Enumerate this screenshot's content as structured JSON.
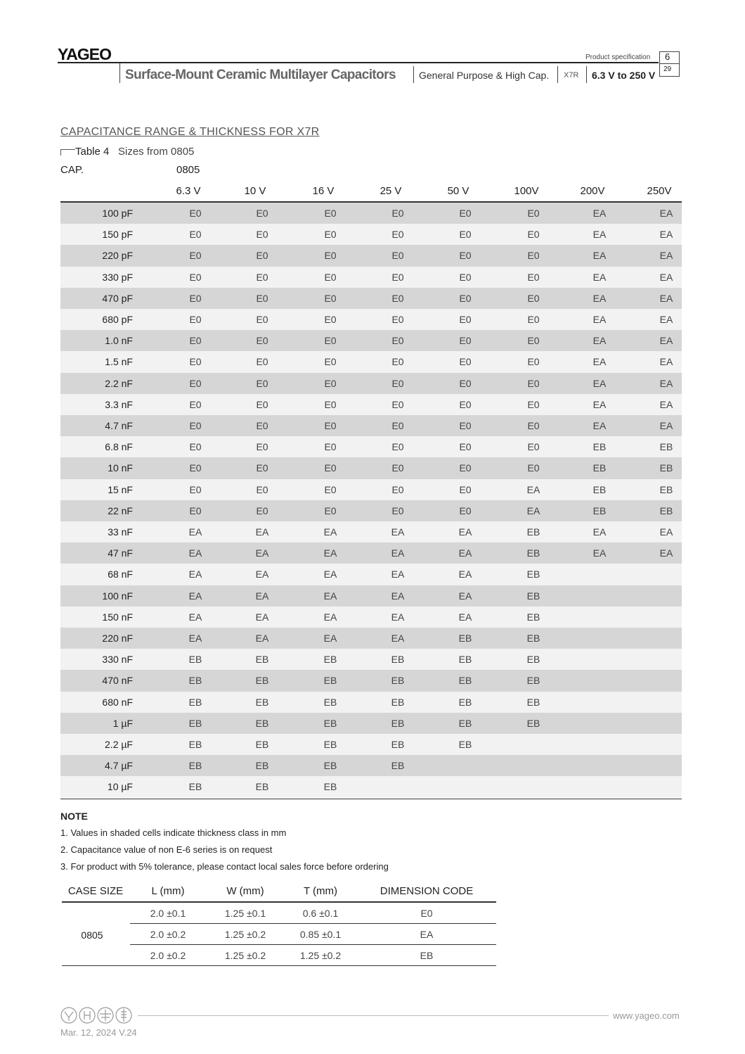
{
  "header": {
    "logo": "YAGEO",
    "product_spec": "Product specification",
    "page": "6",
    "total_pages": "29",
    "title": "Surface-Mount Ceramic Multilayer Capacitors",
    "subtitle": "General Purpose & High Cap.",
    "dielectric": "X7R",
    "voltage_range": "6.3 V to 250 V"
  },
  "section_title": "CAPACITANCE RANGE & THICKNESS FOR X7R",
  "table": {
    "label": "Table 4",
    "caption": "Sizes from 0805",
    "cap_header": "CAP.",
    "size": "0805",
    "voltages": [
      "6.3 V",
      "10 V",
      "16 V",
      "25 V",
      "50 V",
      "100V",
      "200V",
      "250V"
    ],
    "rows": [
      [
        "100 pF",
        "E0",
        "E0",
        "E0",
        "E0",
        "E0",
        "E0",
        "EA",
        "EA"
      ],
      [
        "150 pF",
        "E0",
        "E0",
        "E0",
        "E0",
        "E0",
        "E0",
        "EA",
        "EA"
      ],
      [
        "220 pF",
        "E0",
        "E0",
        "E0",
        "E0",
        "E0",
        "E0",
        "EA",
        "EA"
      ],
      [
        "330 pF",
        "E0",
        "E0",
        "E0",
        "E0",
        "E0",
        "E0",
        "EA",
        "EA"
      ],
      [
        "470 pF",
        "E0",
        "E0",
        "E0",
        "E0",
        "E0",
        "E0",
        "EA",
        "EA"
      ],
      [
        "680 pF",
        "E0",
        "E0",
        "E0",
        "E0",
        "E0",
        "E0",
        "EA",
        "EA"
      ],
      [
        "1.0 nF",
        "E0",
        "E0",
        "E0",
        "E0",
        "E0",
        "E0",
        "EA",
        "EA"
      ],
      [
        "1.5 nF",
        "E0",
        "E0",
        "E0",
        "E0",
        "E0",
        "E0",
        "EA",
        "EA"
      ],
      [
        "2.2 nF",
        "E0",
        "E0",
        "E0",
        "E0",
        "E0",
        "E0",
        "EA",
        "EA"
      ],
      [
        "3.3 nF",
        "E0",
        "E0",
        "E0",
        "E0",
        "E0",
        "E0",
        "EA",
        "EA"
      ],
      [
        "4.7 nF",
        "E0",
        "E0",
        "E0",
        "E0",
        "E0",
        "E0",
        "EA",
        "EA"
      ],
      [
        "6.8 nF",
        "E0",
        "E0",
        "E0",
        "E0",
        "E0",
        "E0",
        "EB",
        "EB"
      ],
      [
        "10 nF",
        "E0",
        "E0",
        "E0",
        "E0",
        "E0",
        "E0",
        "EB",
        "EB"
      ],
      [
        "15 nF",
        "E0",
        "E0",
        "E0",
        "E0",
        "E0",
        "EA",
        "EB",
        "EB"
      ],
      [
        "22 nF",
        "E0",
        "E0",
        "E0",
        "E0",
        "E0",
        "EA",
        "EB",
        "EB"
      ],
      [
        "33 nF",
        "EA",
        "EA",
        "EA",
        "EA",
        "EA",
        "EB",
        "EA",
        "EA"
      ],
      [
        "47 nF",
        "EA",
        "EA",
        "EA",
        "EA",
        "EA",
        "EB",
        "EA",
        "EA"
      ],
      [
        "68 nF",
        "EA",
        "EA",
        "EA",
        "EA",
        "EA",
        "EB",
        null,
        null
      ],
      [
        "100 nF",
        "EA",
        "EA",
        "EA",
        "EA",
        "EA",
        "EB",
        null,
        null
      ],
      [
        "150 nF",
        "EA",
        "EA",
        "EA",
        "EA",
        "EA",
        "EB",
        null,
        null
      ],
      [
        "220 nF",
        "EA",
        "EA",
        "EA",
        "EA",
        "EB",
        "EB",
        null,
        null
      ],
      [
        "330 nF",
        "EB",
        "EB",
        "EB",
        "EB",
        "EB",
        "EB",
        null,
        null
      ],
      [
        "470 nF",
        "EB",
        "EB",
        "EB",
        "EB",
        "EB",
        "EB",
        null,
        null
      ],
      [
        "680 nF",
        "EB",
        "EB",
        "EB",
        "EB",
        "EB",
        "EB",
        null,
        null
      ],
      [
        "1 µF",
        "EB",
        "EB",
        "EB",
        "EB",
        "EB",
        "EB",
        null,
        null
      ],
      [
        "2.2 µF",
        "EB",
        "EB",
        "EB",
        "EB",
        "EB",
        null,
        null,
        null
      ],
      [
        "4.7 µF",
        "EB",
        "EB",
        "EB",
        "EB",
        null,
        null,
        null,
        null
      ],
      [
        "10 µF",
        "EB",
        "EB",
        "EB",
        null,
        null,
        null,
        null,
        null
      ]
    ]
  },
  "notes": {
    "title": "NOTE",
    "items": [
      "1. Values in shaded cells indicate thickness class in mm",
      "2. Capacitance value of non E-6 series is on request",
      "3. For product with 5% tolerance, please contact local sales force before ordering"
    ]
  },
  "dimensions": {
    "headers": [
      "CASE SIZE",
      "L (mm)",
      "W (mm)",
      "T (mm)",
      "DIMENSION CODE"
    ],
    "case_size": "0805",
    "rows": [
      [
        "2.0 ±0.1",
        "1.25 ±0.1",
        "0.6 ±0.1",
        "E0"
      ],
      [
        "2.0 ±0.2",
        "1.25 ±0.2",
        "0.85 ±0.1",
        "EA"
      ],
      [
        "2.0 ±0.2",
        "1.25 ±0.2",
        "1.25 ±0.2",
        "EB"
      ]
    ]
  },
  "footer": {
    "website": "www.yageo.com",
    "date": "Mar. 12, 2024 V.24"
  }
}
